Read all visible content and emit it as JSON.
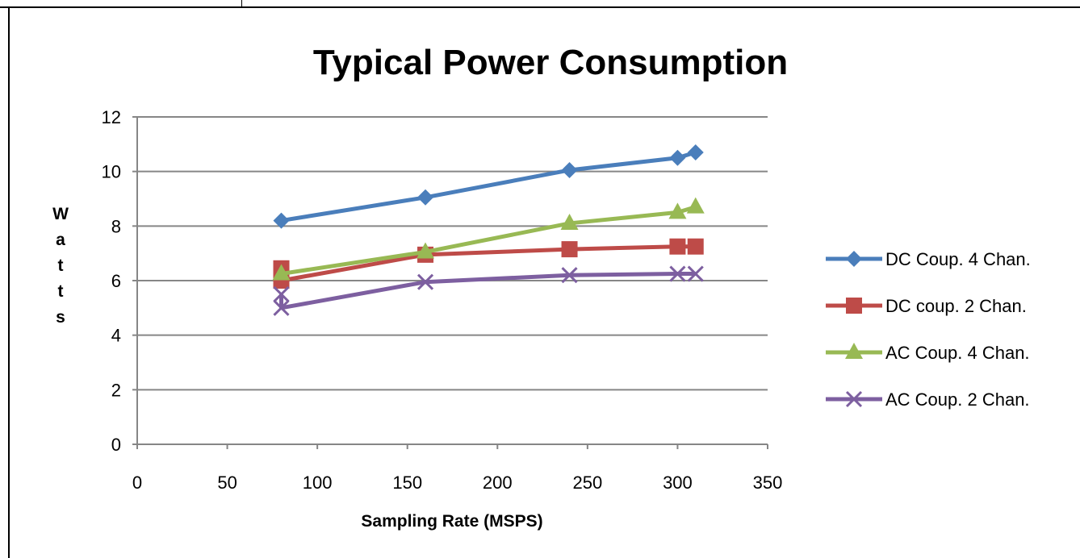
{
  "chart_data": {
    "type": "line",
    "title": "Typical Power Consumption",
    "xlabel": "Sampling Rate (MSPS)",
    "ylabel": "W a t t s",
    "xlim": [
      0,
      350
    ],
    "ylim": [
      0,
      12
    ],
    "x_ticks": [
      "0",
      "50",
      "100",
      "150",
      "200",
      "250",
      "300",
      "350"
    ],
    "y_ticks": [
      "0",
      "2",
      "4",
      "6",
      "8",
      "10",
      "12"
    ],
    "grid": "horizontal",
    "legend_position": "right",
    "series": [
      {
        "name": "DC Coup. 4 Chan.",
        "color": "#4a7ebb",
        "marker": "diamond",
        "x": [
          80,
          160,
          240,
          300,
          310
        ],
        "y": [
          8.2,
          9.05,
          10.05,
          10.5,
          10.7
        ]
      },
      {
        "name": "DC coup. 2 Chan.",
        "color": "#be4b48",
        "marker": "square",
        "x": [
          80,
          80,
          160,
          240,
          300,
          310
        ],
        "y": [
          6.45,
          6.0,
          6.95,
          7.15,
          7.25,
          7.25
        ]
      },
      {
        "name": "AC Coup. 4 Chan.",
        "color": "#98b954",
        "marker": "triangle",
        "x": [
          80,
          160,
          240,
          300,
          310
        ],
        "y": [
          6.25,
          7.05,
          8.1,
          8.5,
          8.7
        ]
      },
      {
        "name": "AC Coup. 2 Chan.",
        "color": "#7d5fa0",
        "marker": "x",
        "x": [
          80,
          80,
          160,
          240,
          300,
          310
        ],
        "y": [
          5.5,
          5.0,
          5.95,
          6.2,
          6.25,
          6.25
        ]
      }
    ]
  }
}
